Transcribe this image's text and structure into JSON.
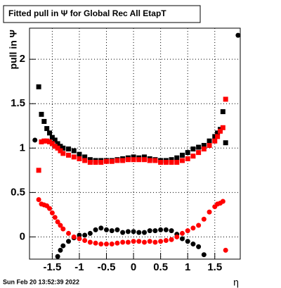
{
  "chart_data": {
    "type": "scatter",
    "title": "Fitted pull in  Ψ  for Global Rec All EtapT",
    "ylabel": "pull in  Ψ",
    "xlabel": "η",
    "footer": "Sun Feb 20 13:52:39 2022",
    "xlim": [
      -1.92,
      1.97
    ],
    "ylim": [
      -0.25,
      2.35
    ],
    "xticks": [
      -1.5,
      -1,
      -0.5,
      0,
      0.5,
      1,
      1.5
    ],
    "yticks": [
      0,
      0.5,
      1,
      1.5,
      2
    ],
    "grid": true,
    "x": [
      -1.82,
      -1.75,
      -1.7,
      -1.65,
      -1.6,
      -1.55,
      -1.5,
      -1.45,
      -1.4,
      -1.35,
      -1.3,
      -1.2,
      -1.1,
      -1.0,
      -0.9,
      -0.8,
      -0.7,
      -0.6,
      -0.5,
      -0.4,
      -0.3,
      -0.2,
      -0.1,
      0,
      0.1,
      0.2,
      0.3,
      0.4,
      0.5,
      0.6,
      0.7,
      0.8,
      0.9,
      1.0,
      1.1,
      1.2,
      1.3,
      1.4,
      1.5,
      1.55,
      1.6,
      1.65,
      1.7,
      1.93
    ],
    "series": [
      {
        "color": "#000000",
        "marker": "square",
        "values": [
          null,
          1.69,
          1.38,
          1.3,
          1.22,
          1.17,
          1.12,
          1.09,
          1.05,
          1.02,
          1.0,
          0.99,
          0.97,
          0.93,
          0.9,
          0.87,
          0.86,
          0.86,
          0.86,
          0.86,
          0.87,
          0.88,
          0.89,
          0.9,
          0.89,
          0.9,
          0.88,
          0.87,
          0.86,
          0.86,
          0.87,
          0.89,
          0.92,
          0.95,
          0.99,
          1.01,
          1.03,
          1.08,
          1.13,
          1.17,
          1.21,
          1.41,
          1.06,
          null
        ]
      },
      {
        "color": "#ff0000",
        "marker": "square",
        "values": [
          null,
          0.75,
          1.07,
          1.08,
          1.08,
          1.07,
          1.05,
          1.02,
          1.0,
          0.97,
          0.94,
          0.92,
          0.9,
          0.88,
          0.86,
          0.84,
          0.84,
          0.84,
          0.85,
          0.85,
          0.86,
          0.86,
          0.87,
          0.87,
          0.87,
          0.87,
          0.86,
          0.86,
          0.84,
          0.84,
          0.84,
          0.84,
          0.86,
          0.88,
          0.91,
          0.95,
          0.99,
          1.03,
          1.08,
          1.13,
          1.19,
          1.23,
          1.55,
          null
        ]
      },
      {
        "color": "#000000",
        "marker": "circle",
        "values": [
          1.09,
          null,
          null,
          null,
          null,
          null,
          null,
          null,
          -0.22,
          -0.15,
          -0.1,
          -0.05,
          -0.01,
          0.02,
          0.02,
          0.04,
          0.08,
          0.1,
          0.08,
          0.07,
          0.08,
          0.05,
          0.06,
          0.06,
          0.05,
          0.05,
          0.07,
          0.07,
          0.08,
          0.08,
          0.07,
          0.03,
          -0.02,
          -0.05,
          -0.08,
          -0.11,
          -0.2,
          null,
          null,
          null,
          null,
          null,
          null,
          2.27
        ]
      },
      {
        "color": "#ff0000",
        "marker": "circle",
        "values": [
          null,
          0.42,
          0.37,
          0.36,
          0.35,
          0.32,
          0.27,
          0.22,
          0.17,
          0.13,
          0.09,
          0.04,
          0.0,
          -0.02,
          -0.04,
          -0.06,
          -0.07,
          -0.08,
          -0.08,
          -0.08,
          -0.07,
          -0.06,
          -0.06,
          -0.05,
          -0.05,
          -0.06,
          -0.05,
          -0.06,
          -0.05,
          -0.04,
          -0.03,
          0.0,
          0.04,
          0.07,
          0.1,
          0.13,
          0.2,
          0.28,
          0.34,
          0.37,
          0.38,
          0.4,
          -0.15,
          null
        ]
      }
    ]
  }
}
